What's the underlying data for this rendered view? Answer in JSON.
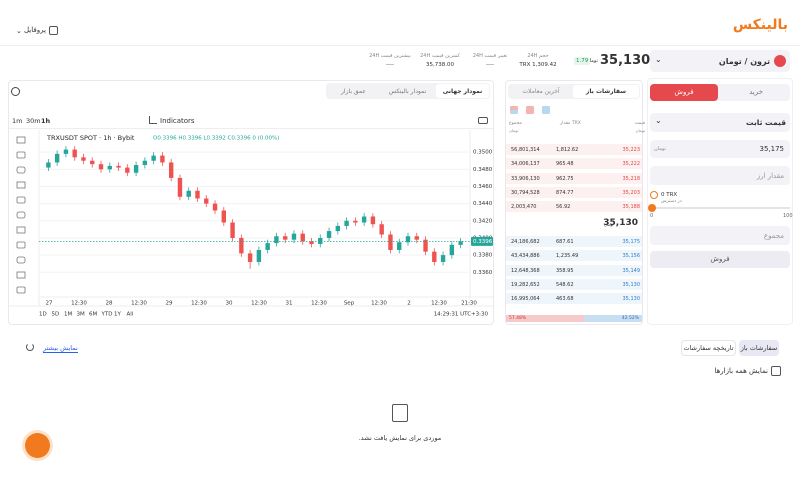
{
  "header": {
    "logo": "بالینکس",
    "profile": "پروفایل"
  },
  "ticker": {
    "pair": "ترون / تومان",
    "price": "35,130",
    "unit": "تومان",
    "change": "1.79",
    "stats": [
      {
        "label": "حجم 24H",
        "value": "TRX 1,309.42"
      },
      {
        "label": "تغییر قیمت 24H",
        "value": "----"
      },
      {
        "label": "کمترین قیمت 24H",
        "value": "35,738.00"
      },
      {
        "label": "بیشترین قیمت 24H",
        "value": "----"
      }
    ]
  },
  "chart_tabs": [
    "نمودار جهانی",
    "نمودار بالینکس",
    "عمق بازار"
  ],
  "toolbar": {
    "intervals": [
      "1m",
      "30m",
      "1h"
    ],
    "indicators": "Indicators"
  },
  "chart_data": {
    "type": "candlestick",
    "title": "TRXUSDT SPOT · 1h · Bybit",
    "ohlc": "O0.3396 H0.3396 L0.3392 C0.3396 0 (0.00%)",
    "colors": {
      "up": "#26a69a",
      "down": "#ef5350"
    },
    "grid": true,
    "ylim": [
      0.3337,
      0.352
    ],
    "yticks": [
      {
        "value": 0.35,
        "label": "0.3500"
      },
      {
        "value": 0.348,
        "label": "0.3480"
      },
      {
        "value": 0.346,
        "label": "0.3460"
      },
      {
        "value": 0.344,
        "label": "0.3440"
      },
      {
        "value": 0.342,
        "label": "0.3420"
      },
      {
        "value": 0.34,
        "label": "0.3400"
      },
      {
        "value": 0.338,
        "label": "0.3380"
      },
      {
        "value": 0.336,
        "label": "0.3360"
      }
    ],
    "last_price": {
      "value": 0.3396,
      "label": "0.3396"
    },
    "x_labels": [
      "27",
      "12:30",
      "28",
      "12:30",
      "29",
      "12:30",
      "30",
      "12:30",
      "31",
      "12:30",
      "Sep",
      "12:30",
      "2",
      "12:30",
      "21:30"
    ],
    "candles": {
      "open": [
        0.3482,
        0.3488,
        0.3498,
        0.3503,
        0.3494,
        0.349,
        0.3486,
        0.348,
        0.3484,
        0.3482,
        0.3476,
        0.3485,
        0.349,
        0.3496,
        0.3488,
        0.347,
        0.3448,
        0.3455,
        0.3446,
        0.344,
        0.3432,
        0.3418,
        0.34,
        0.3382,
        0.3372,
        0.3386,
        0.3394,
        0.3402,
        0.3398,
        0.3405,
        0.3396,
        0.3393,
        0.34,
        0.3408,
        0.3414,
        0.342,
        0.3418,
        0.3425,
        0.3416,
        0.3404,
        0.3386,
        0.3395,
        0.3402,
        0.3398,
        0.3384,
        0.3372,
        0.338,
        0.3392
      ],
      "high": [
        0.3492,
        0.3502,
        0.3507,
        0.3507,
        0.3498,
        0.3494,
        0.349,
        0.3488,
        0.3488,
        0.3486,
        0.3489,
        0.3494,
        0.35,
        0.35,
        0.3492,
        0.3474,
        0.3459,
        0.3459,
        0.345,
        0.3444,
        0.3436,
        0.3422,
        0.3404,
        0.3386,
        0.339,
        0.3398,
        0.3406,
        0.3406,
        0.3409,
        0.3409,
        0.34,
        0.3404,
        0.3412,
        0.3418,
        0.3424,
        0.3424,
        0.3429,
        0.3429,
        0.342,
        0.3408,
        0.3399,
        0.3406,
        0.3406,
        0.3402,
        0.3388,
        0.3384,
        0.3396,
        0.34
      ],
      "low": [
        0.3478,
        0.3484,
        0.3494,
        0.349,
        0.3486,
        0.3482,
        0.3476,
        0.3476,
        0.3478,
        0.3472,
        0.3472,
        0.3481,
        0.3486,
        0.3484,
        0.3466,
        0.3444,
        0.3444,
        0.3442,
        0.3436,
        0.3428,
        0.3414,
        0.3396,
        0.3378,
        0.3364,
        0.3368,
        0.3382,
        0.339,
        0.3394,
        0.3394,
        0.3392,
        0.3389,
        0.3389,
        0.3396,
        0.3404,
        0.341,
        0.3414,
        0.3414,
        0.3412,
        0.34,
        0.3382,
        0.3382,
        0.3391,
        0.3394,
        0.338,
        0.3368,
        0.3368,
        0.3376,
        0.3388
      ],
      "close": [
        0.3488,
        0.3498,
        0.3503,
        0.3494,
        0.349,
        0.3486,
        0.348,
        0.3484,
        0.3482,
        0.3476,
        0.3485,
        0.349,
        0.3496,
        0.3488,
        0.347,
        0.3448,
        0.3455,
        0.3446,
        0.344,
        0.3432,
        0.3418,
        0.34,
        0.3382,
        0.3372,
        0.3386,
        0.3394,
        0.3402,
        0.3398,
        0.3405,
        0.3396,
        0.3393,
        0.34,
        0.3408,
        0.3414,
        0.342,
        0.3418,
        0.3425,
        0.3416,
        0.3404,
        0.3386,
        0.3395,
        0.3402,
        0.3398,
        0.3384,
        0.3372,
        0.338,
        0.3392,
        0.3396
      ]
    },
    "ranges": [
      "1D",
      "5D",
      "1M",
      "3M",
      "6M",
      "YTD",
      "1Y",
      "All"
    ],
    "clock": "14:29:31 UTC+3:30"
  },
  "order_book": {
    "tabs": [
      "سفارشات باز",
      "آخرین معاملات"
    ],
    "headers": {
      "price": "قیمت",
      "amount": "TRX مقدار",
      "total": "مجموع",
      "unit": "تومان"
    },
    "asks": [
      {
        "price": "35,223",
        "amount": "1,812.62",
        "total": "56,801,314"
      },
      {
        "price": "35,222",
        "amount": "965.48",
        "total": "34,006,137"
      },
      {
        "price": "35,218",
        "amount": "962.75",
        "total": "33,906,130"
      },
      {
        "price": "35,203",
        "amount": "874.77",
        "total": "30,794,528"
      },
      {
        "price": "35,188",
        "amount": "56.92",
        "total": "2,003,470"
      }
    ],
    "mid": "35,130",
    "mid_unit": "تومان",
    "bids": [
      {
        "price": "35,175",
        "amount": "687.61",
        "total": "24,186,682"
      },
      {
        "price": "35,156",
        "amount": "1,235.49",
        "total": "43,434,886"
      },
      {
        "price": "35,149",
        "amount": "358.95",
        "total": "12,648,368"
      },
      {
        "price": "35,130",
        "amount": "548.62",
        "total": "19,282,652"
      },
      {
        "price": "35,130",
        "amount": "463.68",
        "total": "16,995,064"
      }
    ],
    "share": {
      "sell": {
        "value": 57.48,
        "label": "57.48%"
      },
      "buy": {
        "value": 42.52,
        "label": "42.52%"
      }
    }
  },
  "trade_form": {
    "buy": "خرید",
    "sell": "فروش",
    "order_type": "قیمت ثابت",
    "price": "35,175",
    "unit": "تومان",
    "amount_placeholder": "مقدار ارز",
    "balance": "0 TRX",
    "available": "در دسترس",
    "slider_min": "0",
    "slider_max": "100",
    "total_placeholder": "مجموع",
    "submit": "فروش"
  },
  "orders": {
    "tabs": [
      "سفارشات باز",
      "تاریخچه سفارشات"
    ],
    "more": "نمایش بیشتر",
    "show_all": "نمایش همه بازارها",
    "empty": "موردی برای نمایش یافت نشد."
  }
}
